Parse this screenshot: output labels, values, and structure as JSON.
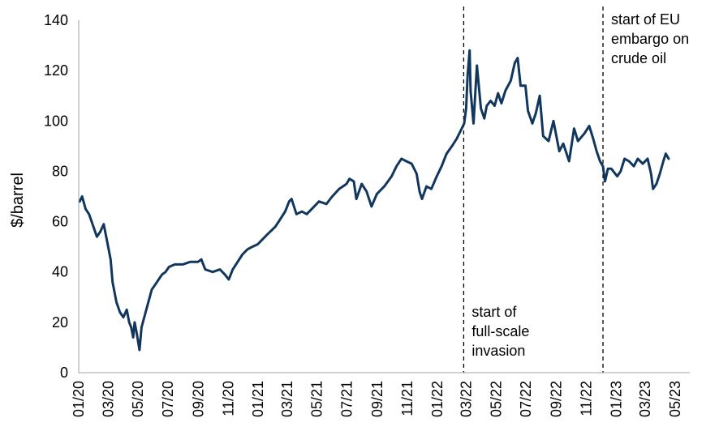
{
  "chart_data": {
    "type": "line",
    "xlabel": "",
    "ylabel": "$/barrel",
    "ylim": [
      0,
      140
    ],
    "yticks": [
      0,
      20,
      40,
      60,
      80,
      100,
      120,
      140
    ],
    "xlim": [
      "2020-01-01",
      "2023-05-31"
    ],
    "xtick_labels": [
      "01/20",
      "03/20",
      "05/20",
      "07/20",
      "09/20",
      "11/20",
      "01/21",
      "03/21",
      "05/21",
      "07/21",
      "09/21",
      "11/21",
      "01/22",
      "03/22",
      "05/22",
      "07/22",
      "09/22",
      "11/22",
      "01/23",
      "03/23",
      "05/23"
    ],
    "xtick_dates": [
      "2020-01-01",
      "2020-03-01",
      "2020-05-01",
      "2020-07-01",
      "2020-09-01",
      "2020-11-01",
      "2021-01-01",
      "2021-03-01",
      "2021-05-01",
      "2021-07-01",
      "2021-09-01",
      "2021-11-01",
      "2022-01-01",
      "2022-03-01",
      "2022-05-01",
      "2022-07-01",
      "2022-09-01",
      "2022-11-01",
      "2023-01-01",
      "2023-03-01",
      "2023-05-01"
    ],
    "grid": false,
    "series": [
      {
        "color": "#12375e",
        "points": [
          [
            "2020-01-03",
            68
          ],
          [
            "2020-01-08",
            70
          ],
          [
            "2020-01-15",
            65
          ],
          [
            "2020-01-22",
            63
          ],
          [
            "2020-01-31",
            58
          ],
          [
            "2020-02-07",
            54
          ],
          [
            "2020-02-14",
            56
          ],
          [
            "2020-02-21",
            59
          ],
          [
            "2020-02-28",
            52
          ],
          [
            "2020-03-06",
            45
          ],
          [
            "2020-03-10",
            36
          ],
          [
            "2020-03-18",
            28
          ],
          [
            "2020-03-25",
            24
          ],
          [
            "2020-04-01",
            22
          ],
          [
            "2020-04-08",
            25
          ],
          [
            "2020-04-13",
            20
          ],
          [
            "2020-04-17",
            18
          ],
          [
            "2020-04-21",
            14
          ],
          [
            "2020-04-24",
            20
          ],
          [
            "2020-04-28",
            16
          ],
          [
            "2020-05-04",
            9
          ],
          [
            "2020-05-08",
            18
          ],
          [
            "2020-05-15",
            23
          ],
          [
            "2020-05-22",
            28
          ],
          [
            "2020-05-29",
            33
          ],
          [
            "2020-06-05",
            35
          ],
          [
            "2020-06-12",
            37
          ],
          [
            "2020-06-19",
            39
          ],
          [
            "2020-06-26",
            40
          ],
          [
            "2020-07-03",
            42
          ],
          [
            "2020-07-15",
            43
          ],
          [
            "2020-07-31",
            43
          ],
          [
            "2020-08-15",
            44
          ],
          [
            "2020-08-31",
            44
          ],
          [
            "2020-09-07",
            45
          ],
          [
            "2020-09-15",
            41
          ],
          [
            "2020-09-30",
            40
          ],
          [
            "2020-10-15",
            41
          ],
          [
            "2020-10-25",
            39
          ],
          [
            "2020-11-02",
            37
          ],
          [
            "2020-11-10",
            41
          ],
          [
            "2020-11-20",
            44
          ],
          [
            "2020-11-30",
            47
          ],
          [
            "2020-12-10",
            49
          ],
          [
            "2020-12-20",
            50
          ],
          [
            "2020-12-31",
            51
          ],
          [
            "2021-01-10",
            53
          ],
          [
            "2021-01-20",
            55
          ],
          [
            "2021-02-05",
            58
          ],
          [
            "2021-02-15",
            61
          ],
          [
            "2021-02-25",
            64
          ],
          [
            "2021-03-05",
            68
          ],
          [
            "2021-03-10",
            69
          ],
          [
            "2021-03-20",
            63
          ],
          [
            "2021-03-31",
            64
          ],
          [
            "2021-04-10",
            63
          ],
          [
            "2021-04-25",
            66
          ],
          [
            "2021-05-05",
            68
          ],
          [
            "2021-05-20",
            67
          ],
          [
            "2021-06-01",
            70
          ],
          [
            "2021-06-15",
            73
          ],
          [
            "2021-06-30",
            75
          ],
          [
            "2021-07-06",
            77
          ],
          [
            "2021-07-15",
            76
          ],
          [
            "2021-07-20",
            69
          ],
          [
            "2021-07-31",
            75
          ],
          [
            "2021-08-10",
            72
          ],
          [
            "2021-08-20",
            66
          ],
          [
            "2021-08-31",
            71
          ],
          [
            "2021-09-15",
            74
          ],
          [
            "2021-09-30",
            78
          ],
          [
            "2021-10-10",
            82
          ],
          [
            "2021-10-20",
            85
          ],
          [
            "2021-10-30",
            84
          ],
          [
            "2021-11-10",
            83
          ],
          [
            "2021-11-20",
            79
          ],
          [
            "2021-11-26",
            72
          ],
          [
            "2021-12-01",
            69
          ],
          [
            "2021-12-10",
            74
          ],
          [
            "2021-12-20",
            73
          ],
          [
            "2021-12-31",
            78
          ],
          [
            "2022-01-10",
            82
          ],
          [
            "2022-01-20",
            87
          ],
          [
            "2022-01-31",
            90
          ],
          [
            "2022-02-10",
            93
          ],
          [
            "2022-02-20",
            97
          ],
          [
            "2022-02-25",
            99
          ],
          [
            "2022-03-01",
            105
          ],
          [
            "2022-03-04",
            118
          ],
          [
            "2022-03-08",
            128
          ],
          [
            "2022-03-10",
            112
          ],
          [
            "2022-03-16",
            99
          ],
          [
            "2022-03-23",
            122
          ],
          [
            "2022-03-31",
            105
          ],
          [
            "2022-04-07",
            101
          ],
          [
            "2022-04-12",
            106
          ],
          [
            "2022-04-20",
            108
          ],
          [
            "2022-04-28",
            106
          ],
          [
            "2022-05-05",
            111
          ],
          [
            "2022-05-12",
            107
          ],
          [
            "2022-05-20",
            112
          ],
          [
            "2022-05-31",
            116
          ],
          [
            "2022-06-08",
            123
          ],
          [
            "2022-06-14",
            125
          ],
          [
            "2022-06-20",
            114
          ],
          [
            "2022-06-30",
            114
          ],
          [
            "2022-07-05",
            104
          ],
          [
            "2022-07-14",
            99
          ],
          [
            "2022-07-21",
            103
          ],
          [
            "2022-07-29",
            110
          ],
          [
            "2022-08-05",
            94
          ],
          [
            "2022-08-16",
            92
          ],
          [
            "2022-08-26",
            100
          ],
          [
            "2022-09-07",
            88
          ],
          [
            "2022-09-15",
            91
          ],
          [
            "2022-09-27",
            84
          ],
          [
            "2022-10-07",
            97
          ],
          [
            "2022-10-15",
            92
          ],
          [
            "2022-10-28",
            95
          ],
          [
            "2022-11-07",
            98
          ],
          [
            "2022-11-15",
            93
          ],
          [
            "2022-11-22",
            88
          ],
          [
            "2022-11-29",
            84
          ],
          [
            "2022-12-05",
            82
          ],
          [
            "2022-12-09",
            76
          ],
          [
            "2022-12-15",
            81
          ],
          [
            "2022-12-22",
            81
          ],
          [
            "2023-01-03",
            78
          ],
          [
            "2023-01-10",
            80
          ],
          [
            "2023-01-18",
            85
          ],
          [
            "2023-01-27",
            84
          ],
          [
            "2023-02-06",
            82
          ],
          [
            "2023-02-14",
            85
          ],
          [
            "2023-02-24",
            83
          ],
          [
            "2023-03-06",
            85
          ],
          [
            "2023-03-13",
            79
          ],
          [
            "2023-03-17",
            73
          ],
          [
            "2023-03-24",
            75
          ],
          [
            "2023-03-31",
            79
          ],
          [
            "2023-04-07",
            84
          ],
          [
            "2023-04-12",
            87
          ],
          [
            "2023-04-18",
            85
          ]
        ]
      }
    ],
    "vlines": [
      {
        "date": "2022-02-24",
        "label_lines": [
          "start of",
          "full-scale",
          "invasion"
        ],
        "label_pos": "bottom-right"
      },
      {
        "date": "2022-12-05",
        "label_lines": [
          "start of EU",
          "embargo on",
          "crude oil"
        ],
        "label_pos": "top-right"
      }
    ],
    "legend": "none"
  }
}
